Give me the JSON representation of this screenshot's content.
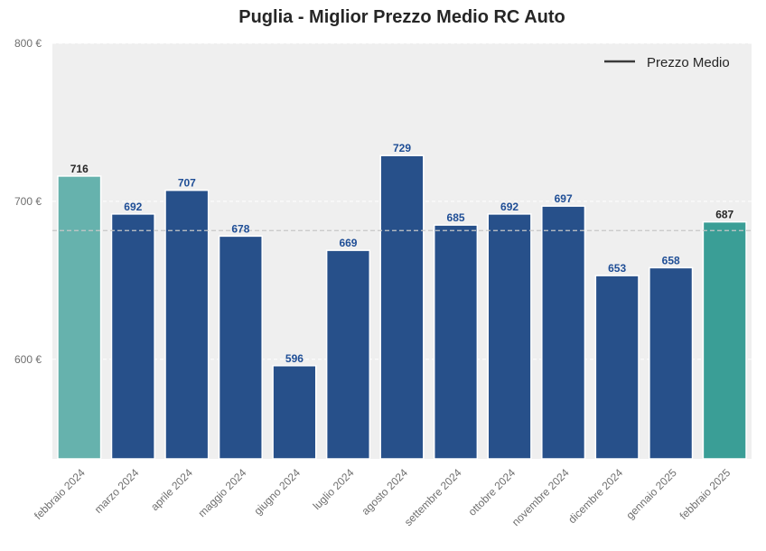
{
  "chart_data": {
    "type": "bar",
    "title": "Puglia - Miglior Prezzo Medio RC Auto",
    "xlabel": "",
    "ylabel": "",
    "categories": [
      "febbraio 2024",
      "marzo 2024",
      "aprile 2024",
      "maggio 2024",
      "giugno 2024",
      "luglio 2024",
      "agosto 2024",
      "settembre 2024",
      "ottobre 2024",
      "novembre 2024",
      "dicembre 2024",
      "gennaio 2025",
      "febbraio 2025"
    ],
    "values": [
      716,
      692,
      707,
      678,
      596,
      669,
      729,
      685,
      692,
      697,
      653,
      658,
      687
    ],
    "bar_colors": [
      "#66b2ad",
      "#27508a",
      "#27508a",
      "#27508a",
      "#27508a",
      "#27508a",
      "#27508a",
      "#27508a",
      "#27508a",
      "#27508a",
      "#27508a",
      "#27508a",
      "#3a9e96"
    ],
    "label_colors": [
      "#262626",
      "#1f4e96",
      "#1f4e96",
      "#1f4e96",
      "#1f4e96",
      "#1f4e96",
      "#1f4e96",
      "#1f4e96",
      "#1f4e96",
      "#1f4e96",
      "#1f4e96",
      "#1f4e96",
      "#262626"
    ],
    "ylim": [
      537,
      800
    ],
    "yticks": [
      600,
      700,
      800
    ],
    "ytick_labels": [
      "600 €",
      "700 €",
      "800 €"
    ],
    "mean_line": {
      "value": 681.5,
      "color": "#c8c8c8",
      "style": "dashed"
    },
    "grid": true,
    "background": "#efefef",
    "legend": {
      "position": "top-right",
      "entries": [
        "Prezzo Medio"
      ],
      "line_color": "#3a3a3a"
    }
  }
}
